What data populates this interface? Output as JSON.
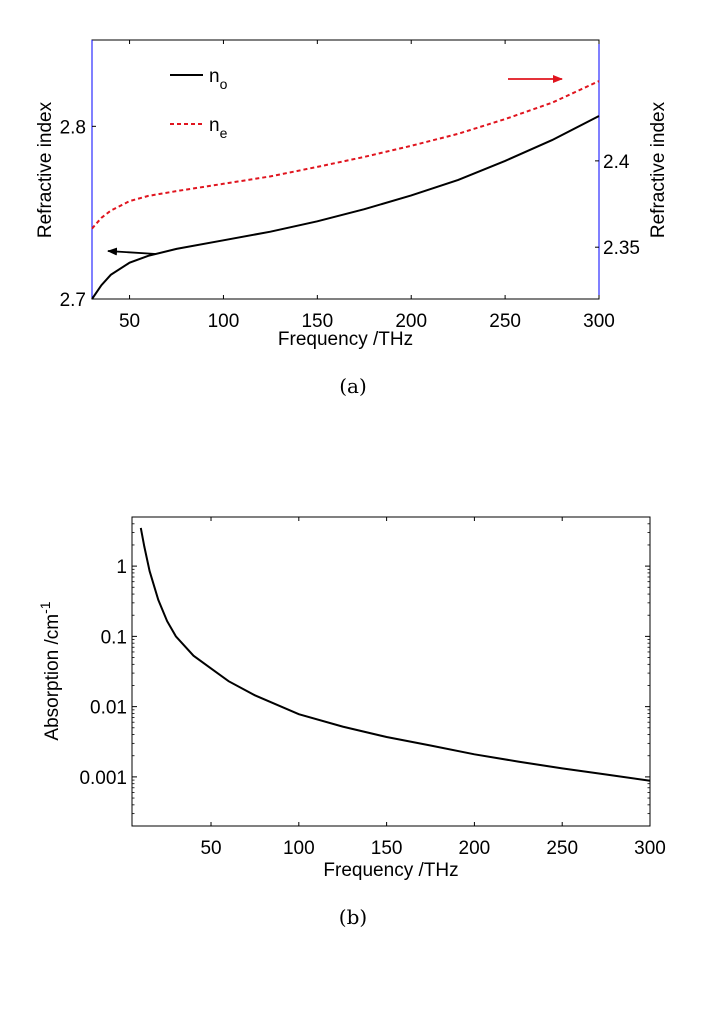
{
  "chart_data": [
    {
      "type": "line",
      "panel": "a",
      "caption": "(a)",
      "xlabel": "Frequency /THz",
      "ylabel_left": "Refractive index",
      "ylabel_right": "Refractive index",
      "xlim": [
        30,
        300
      ],
      "ylim_left": [
        2.7,
        2.85
      ],
      "ylim_right": [
        2.32,
        2.47
      ],
      "x_ticks": [
        "50",
        "100",
        "150",
        "200",
        "250",
        "300"
      ],
      "x_tick_values": [
        50,
        100,
        150,
        200,
        250,
        300
      ],
      "y_left_ticks": [
        "2.7",
        "2.8"
      ],
      "y_left_tick_values": [
        2.7,
        2.8
      ],
      "y_right_ticks": [
        "2.35",
        "2.4"
      ],
      "y_right_tick_values": [
        2.35,
        2.4
      ],
      "grid": false,
      "legend_position": "top-left",
      "series": [
        {
          "name": "n_o",
          "legend_main": "n",
          "legend_sub": "o",
          "axis": "left",
          "style": "solid",
          "color": "#000000",
          "x": [
            30,
            35,
            40,
            50,
            60,
            75,
            100,
            125,
            150,
            175,
            200,
            225,
            250,
            275,
            300
          ],
          "y": [
            2.7,
            2.708,
            2.714,
            2.721,
            2.725,
            2.729,
            2.734,
            2.739,
            2.745,
            2.752,
            2.76,
            2.769,
            2.78,
            2.792,
            2.806
          ]
        },
        {
          "name": "n_e",
          "legend_main": "n",
          "legend_sub": "e",
          "axis": "right",
          "style": "dashed",
          "color": "#e0141e",
          "x": [
            30,
            35,
            40,
            50,
            60,
            75,
            100,
            125,
            150,
            175,
            200,
            225,
            250,
            275,
            300
          ],
          "y": [
            2.3608,
            2.367,
            2.3712,
            2.3767,
            2.3797,
            2.3825,
            2.3867,
            2.391,
            2.3965,
            2.4023,
            2.4087,
            2.4157,
            2.4242,
            2.4337,
            2.4462
          ]
        }
      ],
      "annotations": [
        {
          "type": "arrow",
          "points_to": "left-axis",
          "color": "#000000"
        },
        {
          "type": "arrow",
          "points_to": "right-axis",
          "color": "#e0141e"
        }
      ],
      "right_axis_color": "#0000ff"
    },
    {
      "type": "line",
      "panel": "b",
      "caption": "(b)",
      "xlabel": "Frequency /THz",
      "ylabel": "Absorption /cm",
      "ylabel_superscript": "-1",
      "xlim": [
        5,
        300
      ],
      "ylim": [
        0.0002,
        5
      ],
      "yscale": "log",
      "x_ticks": [
        "50",
        "100",
        "150",
        "200",
        "250",
        "300"
      ],
      "x_tick_values": [
        50,
        100,
        150,
        200,
        250,
        300
      ],
      "y_ticks": [
        "0.001",
        "0.01",
        "0.1",
        "1"
      ],
      "y_tick_values": [
        0.001,
        0.01,
        0.1,
        1
      ],
      "grid": false,
      "series": [
        {
          "color": "#000000",
          "style": "solid",
          "x": [
            10,
            12,
            15,
            20,
            25,
            30,
            40,
            50,
            60,
            75,
            100,
            125,
            150,
            175,
            200,
            225,
            250,
            275,
            300
          ],
          "y": [
            3.5,
            1.9,
            0.85,
            0.33,
            0.165,
            0.1,
            0.053,
            0.035,
            0.023,
            0.0145,
            0.0078,
            0.0052,
            0.0037,
            0.0028,
            0.0021,
            0.00165,
            0.00132,
            0.00108,
            0.00088
          ]
        }
      ]
    }
  ]
}
